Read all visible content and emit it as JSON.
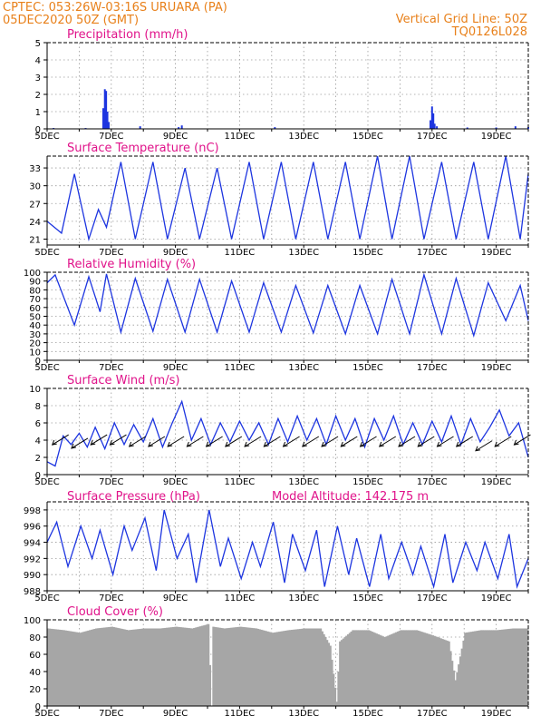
{
  "header": {
    "line1": "CPTEC:    053:26W-03:16S   URUARA (PA)",
    "line2": "05DEC2020  50Z (GMT)",
    "right1": "Vertical Grid Line: 50Z",
    "right2": "TQ0126L028"
  },
  "colors": {
    "header": "#e8801a",
    "title": "#e0138a",
    "series": "#1d35e0",
    "cloud": "#a6a6a6",
    "grid": "#9a9a9a"
  },
  "chart_data": [
    {
      "type": "bar",
      "title": "Precipitation (mm/h)",
      "x_labels": [
        "5DEC",
        "7DEC",
        "9DEC",
        "11DEC",
        "13DEC",
        "15DEC",
        "17DEC",
        "19DEC"
      ],
      "x_range_days": [
        0,
        15
      ],
      "ylim": [
        0,
        5
      ],
      "yticks": [
        "0",
        "1",
        "2",
        "3",
        "4",
        "5"
      ],
      "grid": true,
      "points": [
        [
          0.2,
          0.05
        ],
        [
          1.2,
          0.05
        ],
        [
          1.75,
          1.2
        ],
        [
          1.8,
          2.3
        ],
        [
          1.84,
          2.2
        ],
        [
          1.88,
          1.0
        ],
        [
          1.92,
          0.4
        ],
        [
          2.9,
          0.15
        ],
        [
          4.1,
          0.1
        ],
        [
          4.2,
          0.2
        ],
        [
          7.1,
          0.1
        ],
        [
          11.95,
          0.5
        ],
        [
          12.0,
          1.3
        ],
        [
          12.04,
          0.9
        ],
        [
          12.08,
          0.3
        ],
        [
          12.15,
          0.15
        ],
        [
          13.1,
          0.08
        ],
        [
          14.0,
          0.08
        ],
        [
          14.6,
          0.15
        ],
        [
          15.0,
          0.1
        ]
      ]
    },
    {
      "type": "line",
      "title": "Surface Temperature (nC)",
      "x_labels": [
        "5DEC",
        "7DEC",
        "9DEC",
        "11DEC",
        "13DEC",
        "15DEC",
        "17DEC",
        "19DEC"
      ],
      "ylim": [
        20,
        35
      ],
      "yticks": [
        "21",
        "24",
        "27",
        "30",
        "33"
      ],
      "grid": true,
      "x": [
        0,
        0.45,
        0.85,
        1.3,
        1.6,
        1.85,
        2.3,
        2.75,
        3.3,
        3.75,
        4.3,
        4.75,
        5.3,
        5.75,
        6.3,
        6.75,
        7.3,
        7.75,
        8.3,
        8.75,
        9.3,
        9.75,
        10.3,
        10.75,
        11.3,
        11.75,
        12.3,
        12.75,
        13.3,
        13.75,
        14.3,
        14.75,
        15
      ],
      "y": [
        24,
        22,
        32,
        21,
        26,
        23,
        34,
        21,
        34,
        21,
        33,
        21,
        33,
        21,
        34,
        21,
        34,
        21,
        34,
        21,
        34,
        21,
        35,
        21,
        35,
        21,
        34,
        21,
        34,
        21,
        35,
        21,
        32
      ]
    },
    {
      "type": "line",
      "title": "Relative Humidity (%)",
      "x_labels": [
        "5DEC",
        "7DEC",
        "9DEC",
        "11DEC",
        "13DEC",
        "15DEC",
        "17DEC",
        "19DEC"
      ],
      "ylim": [
        0,
        100
      ],
      "yticks": [
        "0",
        "10",
        "20",
        "30",
        "40",
        "50",
        "60",
        "70",
        "80",
        "90",
        "100"
      ],
      "grid": true,
      "x": [
        0,
        0.25,
        0.85,
        1.3,
        1.65,
        1.85,
        2.3,
        2.75,
        3.3,
        3.75,
        4.3,
        4.75,
        5.3,
        5.75,
        6.3,
        6.75,
        7.3,
        7.75,
        8.3,
        8.75,
        9.3,
        9.75,
        10.3,
        10.75,
        11.3,
        11.75,
        12.3,
        12.75,
        13.3,
        13.75,
        14.3,
        14.75,
        15
      ],
      "y": [
        88,
        97,
        40,
        95,
        55,
        98,
        32,
        93,
        33,
        92,
        32,
        92,
        32,
        90,
        32,
        88,
        32,
        85,
        31,
        85,
        30,
        85,
        30,
        92,
        30,
        97,
        30,
        93,
        28,
        88,
        45,
        85,
        45
      ]
    },
    {
      "type": "line",
      "title": "Surface Wind (m/s)",
      "x_labels": [
        "5DEC",
        "7DEC",
        "9DEC",
        "11DEC",
        "13DEC",
        "15DEC",
        "17DEC",
        "19DEC"
      ],
      "ylim": [
        0,
        10
      ],
      "yticks": [
        "0",
        "2",
        "4",
        "6",
        "8",
        "10"
      ],
      "grid": true,
      "x": [
        0,
        0.25,
        0.5,
        0.75,
        1.0,
        1.25,
        1.5,
        1.8,
        2.1,
        2.4,
        2.7,
        3.0,
        3.3,
        3.6,
        3.9,
        4.2,
        4.5,
        4.8,
        5.1,
        5.4,
        5.7,
        6.0,
        6.3,
        6.6,
        6.9,
        7.2,
        7.5,
        7.8,
        8.1,
        8.4,
        8.7,
        9.0,
        9.3,
        9.6,
        9.9,
        10.2,
        10.5,
        10.8,
        11.1,
        11.4,
        11.7,
        12.0,
        12.3,
        12.6,
        12.9,
        13.2,
        13.5,
        13.8,
        14.1,
        14.4,
        14.7,
        15
      ],
      "y": [
        1.5,
        1.0,
        4.5,
        3.5,
        4.8,
        3.2,
        5.5,
        3.0,
        6.0,
        3.5,
        5.8,
        3.8,
        6.5,
        3.2,
        6.0,
        8.5,
        4.0,
        6.5,
        3.5,
        6.0,
        3.8,
        6.2,
        4.0,
        6.0,
        3.5,
        6.5,
        3.8,
        6.8,
        4.0,
        6.5,
        3.5,
        6.8,
        4.0,
        6.5,
        3.2,
        6.5,
        4.0,
        6.8,
        3.5,
        6.0,
        3.5,
        6.2,
        3.8,
        6.8,
        3.5,
        6.5,
        3.8,
        5.5,
        7.5,
        4.5,
        6.0,
        2.0
      ],
      "arrows": [
        [
          0.5,
          4.2
        ],
        [
          1.1,
          3.8
        ],
        [
          1.7,
          4.2
        ],
        [
          2.3,
          4.2
        ],
        [
          2.9,
          4.0
        ],
        [
          3.5,
          4.0
        ],
        [
          4.1,
          4.0
        ],
        [
          4.7,
          4.0
        ],
        [
          5.3,
          4.0
        ],
        [
          5.9,
          4.0
        ],
        [
          6.5,
          4.0
        ],
        [
          7.1,
          4.0
        ],
        [
          7.7,
          4.0
        ],
        [
          8.3,
          4.0
        ],
        [
          8.9,
          4.0
        ],
        [
          9.5,
          4.0
        ],
        [
          10.1,
          4.0
        ],
        [
          10.7,
          4.0
        ],
        [
          11.3,
          4.0
        ],
        [
          11.9,
          4.0
        ],
        [
          12.5,
          4.0
        ],
        [
          13.1,
          4.0
        ],
        [
          13.7,
          3.5
        ],
        [
          14.3,
          4.0
        ],
        [
          14.9,
          4.2
        ]
      ]
    },
    {
      "type": "line",
      "title": "Surface Pressure (hPa)",
      "annotation": "Model Altitude: 142.175  m",
      "x_labels": [
        "5DEC",
        "7DEC",
        "9DEC",
        "11DEC",
        "13DEC",
        "15DEC",
        "17DEC",
        "19DEC"
      ],
      "ylim": [
        988,
        999
      ],
      "yticks": [
        "988",
        "990",
        "992",
        "994",
        "996",
        "998"
      ],
      "grid": true,
      "x": [
        0,
        0.3,
        0.65,
        1.05,
        1.4,
        1.65,
        2.05,
        2.4,
        2.65,
        3.05,
        3.4,
        3.65,
        4.05,
        4.4,
        4.65,
        5.05,
        5.4,
        5.65,
        6.05,
        6.4,
        6.65,
        7.05,
        7.4,
        7.65,
        8.05,
        8.4,
        8.65,
        9.05,
        9.4,
        9.65,
        10.05,
        10.4,
        10.65,
        11.05,
        11.4,
        11.65,
        12.05,
        12.4,
        12.65,
        13.05,
        13.4,
        13.65,
        14.05,
        14.4,
        14.65,
        15
      ],
      "y": [
        994,
        996.5,
        991,
        996,
        992,
        995.5,
        990,
        996,
        993,
        997,
        990.5,
        998,
        992,
        995,
        989,
        998,
        991,
        994.5,
        989.5,
        994,
        991,
        996.5,
        989,
        995,
        990.5,
        995.5,
        988.5,
        996,
        990,
        994.5,
        988.5,
        995,
        989.5,
        994,
        990,
        993.5,
        988.5,
        995,
        989,
        994,
        990.5,
        994,
        989.5,
        995,
        988.5,
        992
      ]
    },
    {
      "type": "bar",
      "title": "Cloud Cover (%)",
      "x_labels": [
        "5DEC",
        "7DEC",
        "9DEC",
        "11DEC",
        "13DEC",
        "15DEC",
        "17DEC",
        "19DEC"
      ],
      "ylim": [
        0,
        100
      ],
      "yticks": [
        "0",
        "20",
        "40",
        "60",
        "80",
        "100"
      ],
      "grid": true,
      "points": [
        [
          0,
          90
        ],
        [
          0.5,
          88
        ],
        [
          1.0,
          85
        ],
        [
          1.5,
          90
        ],
        [
          2.0,
          92
        ],
        [
          2.5,
          88
        ],
        [
          3.0,
          90
        ],
        [
          3.5,
          90
        ],
        [
          4.0,
          92
        ],
        [
          4.5,
          90
        ],
        [
          5.0,
          95
        ],
        [
          5.1,
          0
        ],
        [
          5.15,
          92
        ],
        [
          5.5,
          90
        ],
        [
          6.0,
          92
        ],
        [
          6.5,
          90
        ],
        [
          7.0,
          85
        ],
        [
          7.5,
          88
        ],
        [
          8.0,
          90
        ],
        [
          8.5,
          90
        ],
        [
          8.8,
          70
        ],
        [
          9.0,
          5
        ],
        [
          9.1,
          75
        ],
        [
          9.5,
          88
        ],
        [
          10.0,
          88
        ],
        [
          10.5,
          80
        ],
        [
          11.0,
          88
        ],
        [
          11.5,
          88
        ],
        [
          12.0,
          82
        ],
        [
          12.5,
          75
        ],
        [
          12.7,
          30
        ],
        [
          13.0,
          85
        ],
        [
          13.5,
          88
        ],
        [
          14.0,
          88
        ],
        [
          14.5,
          90
        ],
        [
          15.0,
          90
        ]
      ]
    }
  ]
}
